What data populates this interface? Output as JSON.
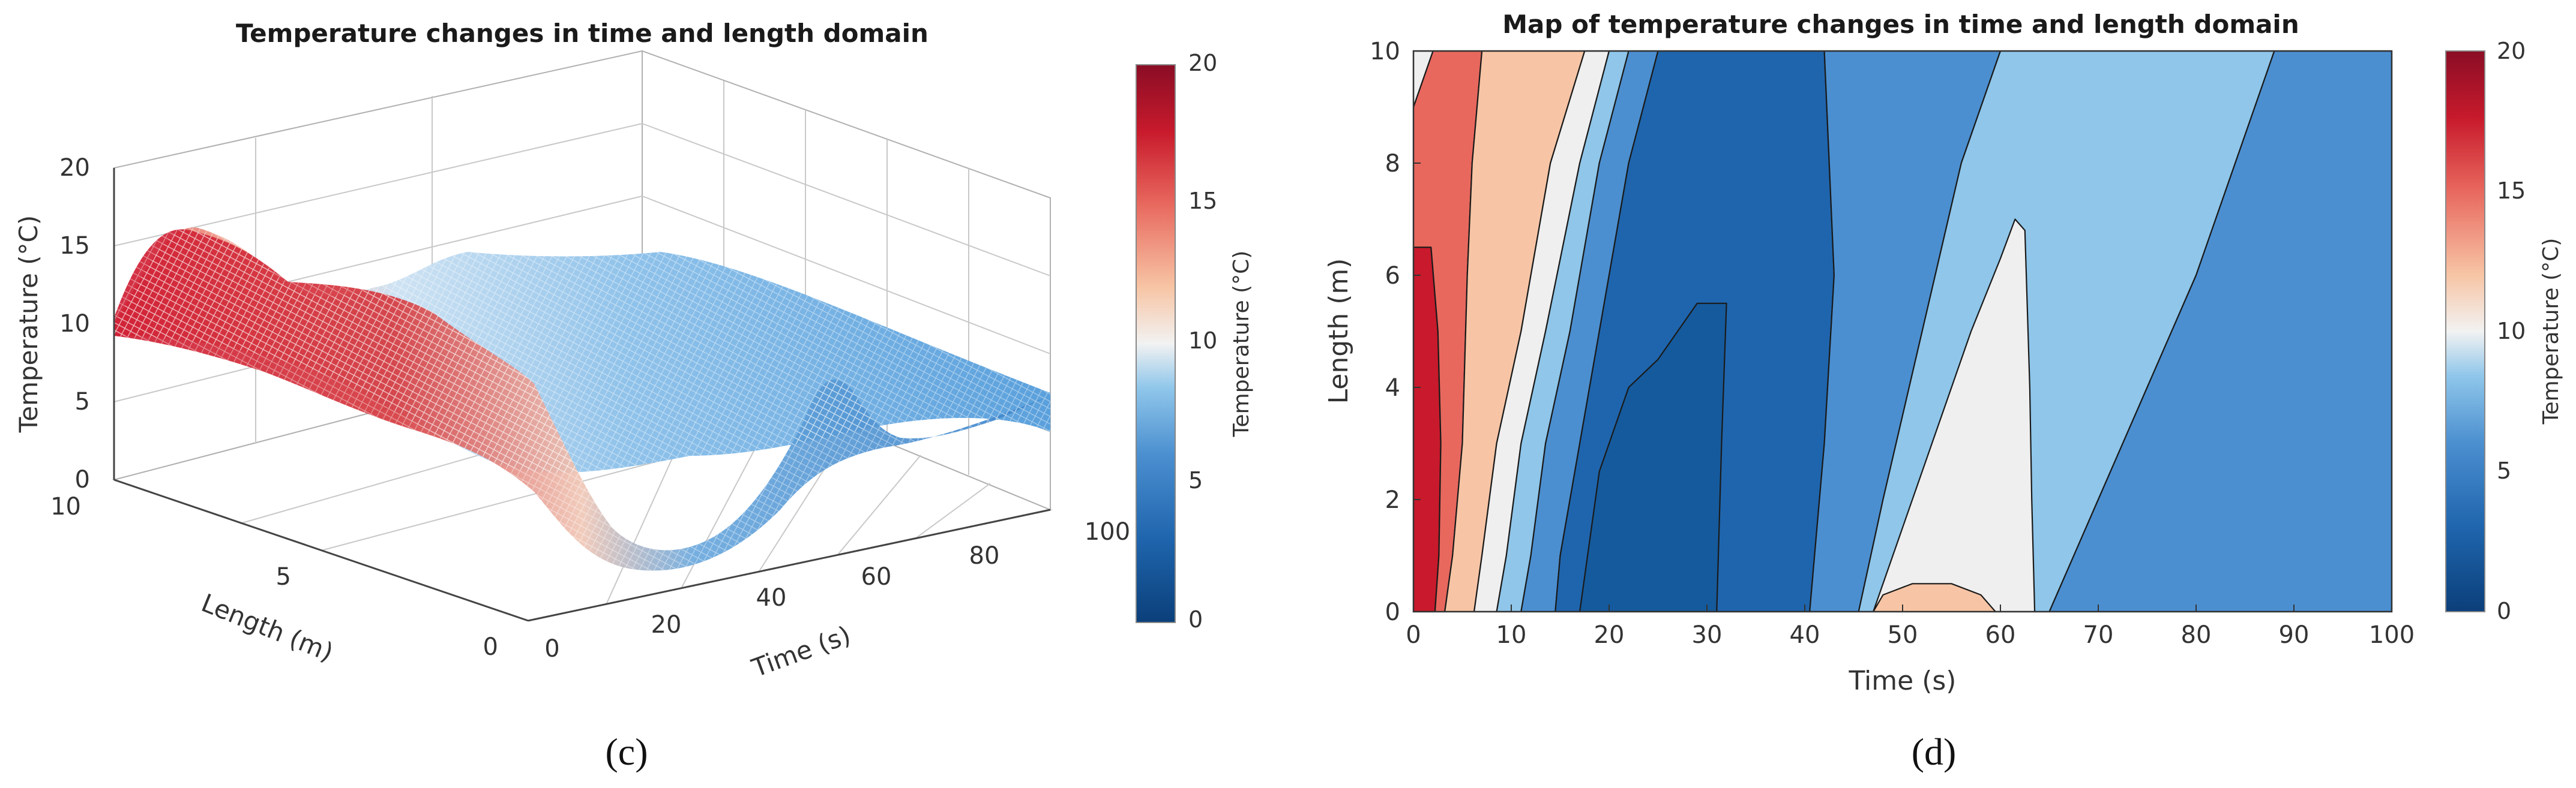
{
  "chart_data": [
    {
      "type": "surface",
      "panel_label": "(c)",
      "title": "Temperature changes in time and length domain",
      "xlabel": "Time (s)",
      "ylabel": "Length (m)",
      "zlabel": "Temperature (°C)",
      "x_ticks": [
        "0",
        "20",
        "40",
        "60",
        "80",
        "100"
      ],
      "y_ticks": [
        "0",
        "5",
        "10"
      ],
      "z_ticks": [
        "0",
        "5",
        "10",
        "15",
        "20"
      ],
      "xlim": [
        0,
        100
      ],
      "ylim": [
        0,
        10
      ],
      "zlim": [
        0,
        20
      ],
      "grid": true,
      "colorbar": {
        "label": "Temperature (°C)",
        "ticks": [
          "0",
          "5",
          "10",
          "15",
          "20"
        ],
        "range": [
          0,
          20
        ]
      },
      "profile_time": [
        0,
        5,
        10,
        15,
        20,
        25,
        30,
        35,
        40,
        45,
        50,
        55,
        60,
        65,
        70,
        75,
        80,
        85,
        90,
        95,
        100
      ],
      "temperature_at_length_10": [
        10,
        14.5,
        15.5,
        14.5,
        12.5,
        11,
        9.5,
        8.5,
        7.5,
        7.5,
        7.5,
        7.5,
        7.5,
        7.5,
        7.5,
        7,
        6.5,
        6,
        5.5,
        5,
        4.5
      ],
      "temperature_at_length_0": [
        15,
        15.5,
        13,
        11,
        9,
        7,
        5,
        3.5,
        2.5,
        3,
        8,
        12,
        10,
        5,
        3,
        2.5,
        2.5,
        3,
        3.5,
        3.5,
        4
      ]
    },
    {
      "type": "contour",
      "panel_label": "(d)",
      "title": "Map of temperature changes in time and length domain",
      "xlabel": "Time (s)",
      "ylabel": "Length (m)",
      "x_ticks": [
        "0",
        "10",
        "20",
        "30",
        "40",
        "50",
        "60",
        "70",
        "80",
        "90",
        "100"
      ],
      "y_ticks": [
        "0",
        "2",
        "4",
        "6",
        "8",
        "10"
      ],
      "xlim": [
        0,
        100
      ],
      "ylim": [
        0,
        10
      ],
      "colorbar": {
        "label": "Temperature (°C)",
        "ticks": [
          "0",
          "5",
          "10",
          "15",
          "20"
        ],
        "range": [
          0,
          20
        ]
      },
      "regions": [
        {
          "level": "17.5",
          "color": "#c81a2c",
          "points": [
            [
              0,
              0
            ],
            [
              0,
              10
            ],
            [
              0,
              6.5
            ],
            [
              1.8,
              6.5
            ],
            [
              2.5,
              5
            ],
            [
              2.8,
              3
            ],
            [
              2.6,
              1
            ],
            [
              2.2,
              0
            ]
          ]
        },
        {
          "level": "15",
          "color": "#e8685e",
          "points": [
            [
              0,
              10
            ],
            [
              7,
              10
            ],
            [
              6,
              8
            ],
            [
              5.5,
              6
            ],
            [
              5,
              3
            ],
            [
              4,
              1
            ],
            [
              3.2,
              0
            ],
            [
              2.2,
              0
            ],
            [
              2.6,
              1
            ],
            [
              2.8,
              3
            ],
            [
              2.5,
              5
            ],
            [
              1.8,
              6.5
            ],
            [
              0,
              6.5
            ]
          ]
        },
        {
          "level": "12.5",
          "color": "#f7c5a5",
          "points": [
            [
              0,
              10
            ],
            [
              2,
              10
            ],
            [
              0,
              9
            ]
          ]
        },
        {
          "level": "12.5",
          "color": "#f7c5a5",
          "points": [
            [
              7,
              10
            ],
            [
              17.5,
              10
            ],
            [
              14,
              8
            ],
            [
              11,
              5
            ],
            [
              8.5,
              3
            ],
            [
              7,
              1
            ],
            [
              6.2,
              0
            ],
            [
              3.2,
              0
            ],
            [
              4,
              1
            ],
            [
              5,
              3
            ],
            [
              5.5,
              6
            ],
            [
              6,
              8
            ]
          ]
        },
        {
          "level": "10",
          "color": "#efefef",
          "points": [
            [
              0,
              9
            ],
            [
              2,
              10
            ],
            [
              0,
              10
            ]
          ]
        },
        {
          "level": "10",
          "color": "#efefef",
          "points": [
            [
              17.5,
              10
            ],
            [
              20,
              10
            ],
            [
              17,
              8
            ],
            [
              13.5,
              5
            ],
            [
              11,
              3
            ],
            [
              9.5,
              1
            ],
            [
              8.5,
              0
            ],
            [
              6.2,
              0
            ],
            [
              7,
              1
            ],
            [
              8.5,
              3
            ],
            [
              11,
              5
            ],
            [
              14,
              8
            ]
          ]
        },
        {
          "level": "7.5",
          "color": "#8fc6ea",
          "points": [
            [
              20,
              10
            ],
            [
              22,
              10
            ],
            [
              19,
              8
            ],
            [
              16,
              5
            ],
            [
              13.5,
              3
            ],
            [
              12,
              1
            ],
            [
              11,
              0
            ],
            [
              8.5,
              0
            ],
            [
              9.5,
              1
            ],
            [
              11,
              3
            ],
            [
              13.5,
              5
            ],
            [
              17,
              8
            ]
          ]
        },
        {
          "level": "5",
          "color": "#4b8fd0",
          "points": [
            [
              22,
              10
            ],
            [
              25,
              10
            ],
            [
              22,
              8
            ],
            [
              20,
              6
            ],
            [
              18,
              4
            ],
            [
              16,
              2
            ],
            [
              15,
              1
            ],
            [
              14.5,
              0
            ],
            [
              11,
              0
            ],
            [
              12,
              1
            ],
            [
              13.5,
              3
            ],
            [
              16,
              5
            ],
            [
              19,
              8
            ]
          ]
        },
        {
          "level": "2.5",
          "color": "#1f65ad",
          "points": [
            [
              25,
              10
            ],
            [
              42,
              10
            ],
            [
              43,
              6
            ],
            [
              42,
              3
            ],
            [
              41,
              1
            ],
            [
              40.5,
              0
            ],
            [
              14.5,
              0
            ],
            [
              15,
              1
            ],
            [
              16,
              2
            ],
            [
              18,
              4
            ],
            [
              20,
              6
            ],
            [
              22,
              8
            ]
          ]
        },
        {
          "level": "0",
          "color": "#155a9c",
          "points": [
            [
              17,
              0
            ],
            [
              31,
              0
            ],
            [
              31.5,
              3
            ],
            [
              32,
              5.5
            ],
            [
              29,
              5.5
            ],
            [
              25,
              4.5
            ],
            [
              22,
              4
            ],
            [
              19,
              2.5
            ]
          ]
        },
        {
          "level": "5",
          "color": "#4b8fd0",
          "points": [
            [
              42,
              10
            ],
            [
              60,
              10
            ],
            [
              56,
              8
            ],
            [
              52,
              5
            ],
            [
              48,
              2
            ],
            [
              45.5,
              0
            ],
            [
              40.5,
              0
            ],
            [
              41,
              1
            ],
            [
              42,
              3
            ],
            [
              43,
              6
            ]
          ]
        },
        {
          "level": "7.5",
          "color": "#8fc6ea",
          "points": [
            [
              60,
              10
            ],
            [
              88,
              10
            ],
            [
              84,
              8
            ],
            [
              80,
              6
            ],
            [
              75,
              4
            ],
            [
              70,
              2
            ],
            [
              65,
              0
            ],
            [
              45.5,
              0
            ],
            [
              48,
              2
            ],
            [
              52,
              5
            ],
            [
              56,
              8
            ]
          ]
        },
        {
          "level": "10",
          "color": "#efefef",
          "points": [
            [
              47,
              0
            ],
            [
              50,
              1.5
            ],
            [
              53,
              3
            ],
            [
              57,
              5
            ],
            [
              60,
              6.3
            ],
            [
              61.5,
              7
            ],
            [
              62.5,
              6.8
            ],
            [
              63,
              4
            ],
            [
              63.2,
              2
            ],
            [
              63.5,
              0
            ]
          ]
        },
        {
          "level": "12.5",
          "color": "#f7c5a5",
          "points": [
            [
              47,
              0
            ],
            [
              48,
              0.3
            ],
            [
              51,
              0.5
            ],
            [
              55,
              0.5
            ],
            [
              58,
              0.3
            ],
            [
              59.5,
              0
            ]
          ]
        },
        {
          "level": "5",
          "color": "#4b8fd0",
          "points": [
            [
              88,
              10
            ],
            [
              100,
              10
            ],
            [
              100,
              0
            ],
            [
              65,
              0
            ],
            [
              70,
              2
            ],
            [
              75,
              4
            ],
            [
              80,
              6
            ],
            [
              84,
              8
            ]
          ]
        }
      ]
    }
  ],
  "panel_labels": {
    "c": "(c)",
    "d": "(d)"
  }
}
